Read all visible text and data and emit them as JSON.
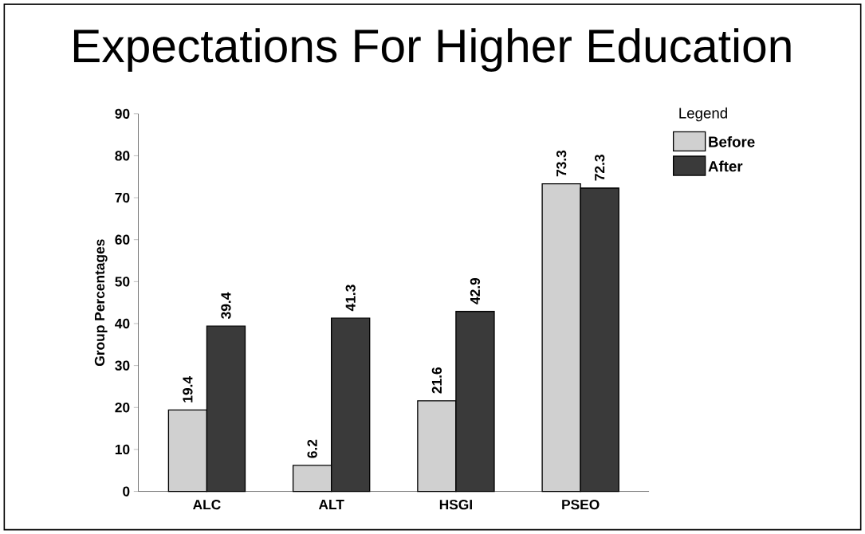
{
  "chart_data": {
    "type": "bar",
    "title": "Expectations For Higher Education",
    "ylabel": "Group Percentages",
    "legend_title": "Legend",
    "categories": [
      "ALC",
      "ALT",
      "HSGI",
      "PSEO"
    ],
    "series": [
      {
        "name": "Before",
        "color": "#d0d0d0",
        "values": [
          19.4,
          6.2,
          21.6,
          73.3
        ]
      },
      {
        "name": "After",
        "color": "#3a3a3a",
        "values": [
          39.4,
          41.3,
          42.9,
          72.3
        ]
      }
    ],
    "ylim": [
      0,
      90
    ],
    "yticks": [
      0,
      10,
      20,
      30,
      40,
      50,
      60,
      70,
      80,
      90
    ],
    "data_labels": true,
    "legend": "top right",
    "grid": false
  }
}
